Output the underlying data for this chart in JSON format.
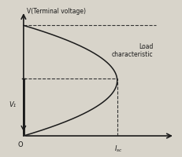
{
  "title": "",
  "ylabel": "V(Terminal voltage)",
  "xlabel": "I_{sc}",
  "origin_label": "O",
  "v1_label": "V₁",
  "load_char_label": "Load\ncharacteristic",
  "bg_color": "#d8d4ca",
  "curve_color": "#1a1a1a",
  "dashed_color": "#333333",
  "axis_color": "#1a1a1a",
  "v_max": 1.0,
  "v1": 0.52,
  "i_max": 0.65,
  "figsize": [
    2.32,
    2.01
  ],
  "dpi": 100
}
